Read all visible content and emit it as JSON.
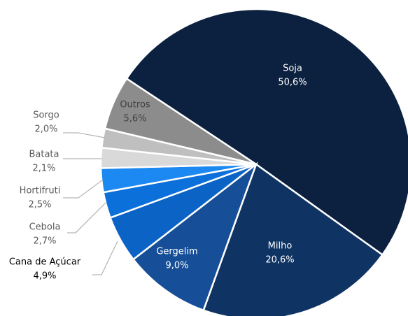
{
  "chart_data": {
    "type": "pie",
    "categories": [
      "Soja",
      "Milho",
      "Gergelim",
      "Cana de Açúcar",
      "Cebola",
      "Hortifruti",
      "Batata",
      "Sorgo",
      "Outros"
    ],
    "values": [
      50.6,
      20.6,
      9.0,
      4.9,
      2.7,
      2.5,
      2.1,
      2.0,
      5.6
    ],
    "value_labels": [
      "50,6%",
      "20,6%",
      "9,0%",
      "4,9%",
      "2,7%",
      "2,5%",
      "2,1%",
      "2,0%",
      "5,6%"
    ],
    "colors": [
      "#0c213f",
      "#0f3463",
      "#164f98",
      "#0b63c6",
      "#0c70da",
      "#1c88f1",
      "#d9d9d9",
      "#bfbfbf",
      "#8c8c8c"
    ]
  }
}
